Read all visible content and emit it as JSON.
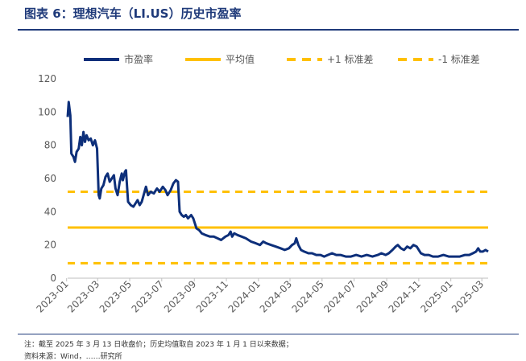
{
  "header": {
    "title": "图表 6：理想汽车（LI.US）历史市盈率"
  },
  "footer": {
    "note": "注：截至 2025 年 3 月 13 日收盘价；历史均值取自 2023 年 1 月 1 日以来数据；",
    "source": "资料来源：Wind，……研究所"
  },
  "colors": {
    "series": "#0d2f7a",
    "mean": "#ffc000",
    "band": "#ffc000",
    "title": "#1f3a7a"
  },
  "chart_data": {
    "type": "line",
    "ylim": [
      0,
      120
    ],
    "yticks": [
      0,
      20,
      40,
      60,
      80,
      100,
      120
    ],
    "x_start": "2023-01-03",
    "x_end": "2025-03-13",
    "xticks": [
      "2023-01",
      "2023-03",
      "2023-05",
      "2023-07",
      "2023-09",
      "2023-11",
      "2024-01",
      "2024-03",
      "2024-05",
      "2024-07",
      "2024-09",
      "2024-11",
      "2025-01",
      "2025-03"
    ],
    "legend": [
      {
        "key": "pe",
        "label": "市盈率",
        "style": "solid"
      },
      {
        "key": "mean",
        "label": "平均值",
        "style": "solid"
      },
      {
        "key": "plus1",
        "label": "+1 标准差",
        "style": "dashed"
      },
      {
        "key": "minus1",
        "label": "-1 标准差",
        "style": "dashed"
      }
    ],
    "legend_position": "top",
    "mean": 30.5,
    "plus1": 52,
    "minus1": 9,
    "series": [
      {
        "name": "市盈率",
        "points": [
          [
            "2023-01-03",
            97
          ],
          [
            "2023-01-05",
            106
          ],
          [
            "2023-01-08",
            98
          ],
          [
            "2023-01-10",
            75
          ],
          [
            "2023-01-14",
            73
          ],
          [
            "2023-01-17",
            70
          ],
          [
            "2023-01-20",
            76
          ],
          [
            "2023-01-24",
            78
          ],
          [
            "2023-01-27",
            85
          ],
          [
            "2023-01-30",
            80
          ],
          [
            "2023-02-02",
            88
          ],
          [
            "2023-02-05",
            82
          ],
          [
            "2023-02-08",
            86
          ],
          [
            "2023-02-12",
            83
          ],
          [
            "2023-02-16",
            84
          ],
          [
            "2023-02-20",
            80
          ],
          [
            "2023-02-24",
            83
          ],
          [
            "2023-02-28",
            78
          ],
          [
            "2023-03-03",
            50
          ],
          [
            "2023-03-05",
            48
          ],
          [
            "2023-03-08",
            54
          ],
          [
            "2023-03-12",
            56
          ],
          [
            "2023-03-16",
            61
          ],
          [
            "2023-03-20",
            63
          ],
          [
            "2023-03-24",
            58
          ],
          [
            "2023-03-28",
            60
          ],
          [
            "2023-04-01",
            62
          ],
          [
            "2023-04-04",
            54
          ],
          [
            "2023-04-08",
            50
          ],
          [
            "2023-04-12",
            58
          ],
          [
            "2023-04-16",
            63
          ],
          [
            "2023-04-18",
            59
          ],
          [
            "2023-04-22",
            64
          ],
          [
            "2023-04-24",
            65
          ],
          [
            "2023-04-28",
            46
          ],
          [
            "2023-05-03",
            44
          ],
          [
            "2023-05-08",
            43
          ],
          [
            "2023-05-12",
            45
          ],
          [
            "2023-05-16",
            47
          ],
          [
            "2023-05-20",
            44
          ],
          [
            "2023-05-24",
            46
          ],
          [
            "2023-06-01",
            55
          ],
          [
            "2023-06-05",
            50
          ],
          [
            "2023-06-10",
            52
          ],
          [
            "2023-06-16",
            51
          ],
          [
            "2023-06-22",
            54
          ],
          [
            "2023-06-27",
            52
          ],
          [
            "2023-07-03",
            55
          ],
          [
            "2023-07-08",
            53
          ],
          [
            "2023-07-12",
            50
          ],
          [
            "2023-07-18",
            53
          ],
          [
            "2023-07-23",
            57
          ],
          [
            "2023-07-28",
            59
          ],
          [
            "2023-08-01",
            58
          ],
          [
            "2023-08-04",
            40
          ],
          [
            "2023-08-08",
            38
          ],
          [
            "2023-08-12",
            37
          ],
          [
            "2023-08-16",
            38
          ],
          [
            "2023-08-20",
            36
          ],
          [
            "2023-08-26",
            38
          ],
          [
            "2023-08-30",
            36
          ],
          [
            "2023-09-05",
            30
          ],
          [
            "2023-09-10",
            29
          ],
          [
            "2023-09-15",
            27
          ],
          [
            "2023-09-22",
            26
          ],
          [
            "2023-10-01",
            25
          ],
          [
            "2023-10-08",
            25
          ],
          [
            "2023-10-15",
            24
          ],
          [
            "2023-10-22",
            23
          ],
          [
            "2023-10-30",
            25
          ],
          [
            "2023-11-05",
            26
          ],
          [
            "2023-11-09",
            28
          ],
          [
            "2023-11-12",
            25
          ],
          [
            "2023-11-16",
            27
          ],
          [
            "2023-11-22",
            26
          ],
          [
            "2023-11-30",
            25
          ],
          [
            "2023-12-08",
            24
          ],
          [
            "2023-12-18",
            22
          ],
          [
            "2023-12-27",
            21
          ],
          [
            "2024-01-04",
            20
          ],
          [
            "2024-01-10",
            22
          ],
          [
            "2024-01-16",
            21
          ],
          [
            "2024-01-25",
            20
          ],
          [
            "2024-02-03",
            19
          ],
          [
            "2024-02-12",
            18
          ],
          [
            "2024-02-20",
            17
          ],
          [
            "2024-02-28",
            18
          ],
          [
            "2024-03-05",
            20
          ],
          [
            "2024-03-10",
            21
          ],
          [
            "2024-03-13",
            24
          ],
          [
            "2024-03-17",
            20
          ],
          [
            "2024-03-22",
            17
          ],
          [
            "2024-03-28",
            16
          ],
          [
            "2024-04-05",
            15
          ],
          [
            "2024-04-12",
            15
          ],
          [
            "2024-04-20",
            14
          ],
          [
            "2024-04-28",
            14
          ],
          [
            "2024-05-05",
            13
          ],
          [
            "2024-05-12",
            14
          ],
          [
            "2024-05-20",
            15
          ],
          [
            "2024-05-28",
            14
          ],
          [
            "2024-06-05",
            14
          ],
          [
            "2024-06-15",
            13
          ],
          [
            "2024-06-25",
            13
          ],
          [
            "2024-07-05",
            14
          ],
          [
            "2024-07-15",
            13
          ],
          [
            "2024-07-25",
            14
          ],
          [
            "2024-08-05",
            13
          ],
          [
            "2024-08-15",
            14
          ],
          [
            "2024-08-22",
            15
          ],
          [
            "2024-08-30",
            14
          ],
          [
            "2024-09-05",
            15
          ],
          [
            "2024-09-12",
            17
          ],
          [
            "2024-09-18",
            19
          ],
          [
            "2024-09-22",
            20
          ],
          [
            "2024-09-28",
            18
          ],
          [
            "2024-10-04",
            17
          ],
          [
            "2024-10-10",
            19
          ],
          [
            "2024-10-16",
            18
          ],
          [
            "2024-10-22",
            20
          ],
          [
            "2024-10-28",
            19
          ],
          [
            "2024-11-05",
            15
          ],
          [
            "2024-11-12",
            14
          ],
          [
            "2024-11-20",
            14
          ],
          [
            "2024-11-28",
            13
          ],
          [
            "2024-12-08",
            13
          ],
          [
            "2024-12-18",
            14
          ],
          [
            "2024-12-28",
            13
          ],
          [
            "2025-01-08",
            13
          ],
          [
            "2025-01-18",
            13
          ],
          [
            "2025-01-28",
            14
          ],
          [
            "2025-02-05",
            14
          ],
          [
            "2025-02-12",
            15
          ],
          [
            "2025-02-18",
            16
          ],
          [
            "2025-02-22",
            18
          ],
          [
            "2025-02-26",
            16
          ],
          [
            "2025-03-03",
            16
          ],
          [
            "2025-03-08",
            17
          ],
          [
            "2025-03-13",
            16
          ]
        ]
      }
    ]
  }
}
